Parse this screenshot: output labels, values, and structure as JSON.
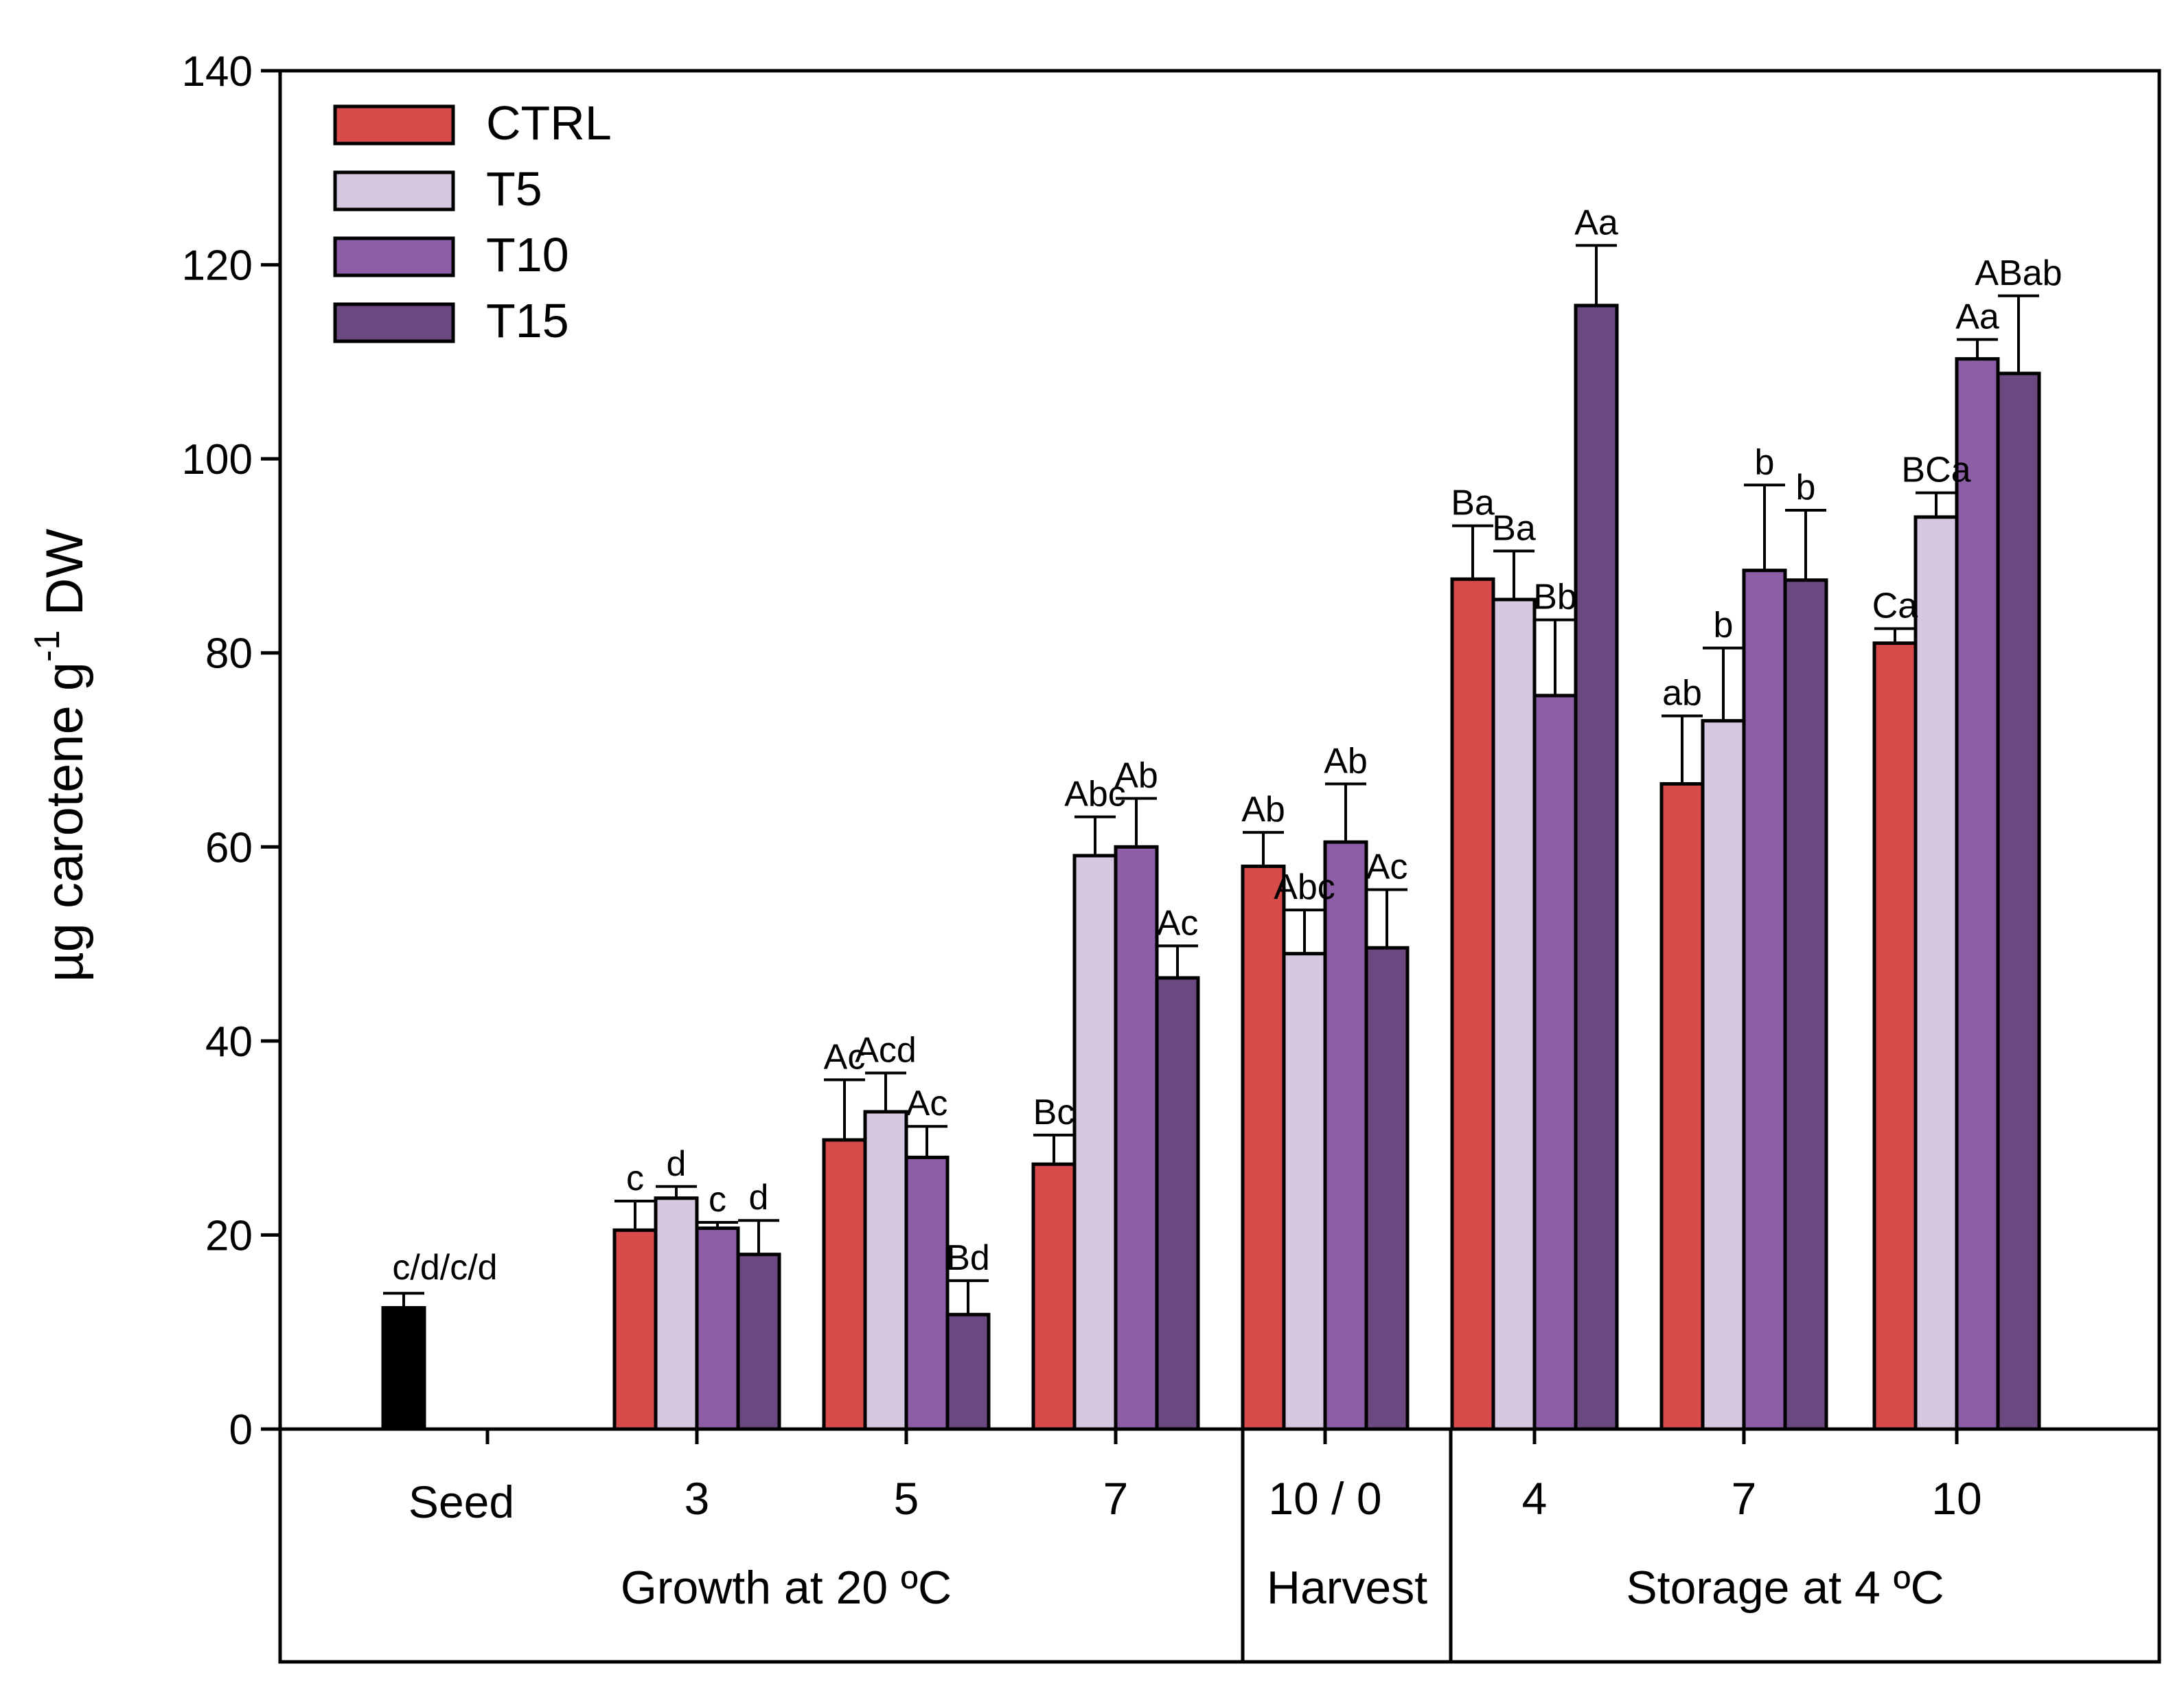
{
  "chart_data": {
    "type": "bar",
    "title": "",
    "ylabel": "µg carotene g",
    "ylabel_sup": "-1",
    "ylabel_suffix": " DW",
    "ylim": [
      0,
      140
    ],
    "yticks": [
      0,
      20,
      40,
      60,
      80,
      100,
      120,
      140
    ],
    "legend_position": "top-left",
    "series": [
      {
        "name": "CTRL",
        "color": "#d84b4b"
      },
      {
        "name": "T5",
        "color": "#d6c8e0"
      },
      {
        "name": "T10",
        "color": "#8b5ea6"
      },
      {
        "name": "T15",
        "color": "#6a4880"
      }
    ],
    "seed": {
      "label": "Seed",
      "value": 12.5,
      "error": 1.5,
      "sig": "c/d/c/d",
      "color": "#000000"
    },
    "categories": [
      {
        "label": "3",
        "values": [
          20.5,
          23.8,
          20.7,
          18.0
        ],
        "errors": [
          3.0,
          1.2,
          0.6,
          3.5
        ],
        "sig": [
          "c",
          "d",
          "c",
          "d"
        ]
      },
      {
        "label": "5",
        "values": [
          29.8,
          32.7,
          28.0,
          11.8
        ],
        "errors": [
          6.2,
          4.0,
          3.2,
          3.5
        ],
        "sig": [
          "Ac",
          "Acd",
          "Ac",
          "Bd"
        ]
      },
      {
        "label": "7",
        "values": [
          27.3,
          59.1,
          60.0,
          46.5
        ],
        "errors": [
          3.0,
          4.0,
          5.0,
          3.3
        ],
        "sig": [
          "Bc",
          "Abc",
          "Ab",
          "Ac"
        ]
      },
      {
        "label": "10 / 0",
        "values": [
          58.0,
          49.0,
          60.5,
          49.6
        ],
        "errors": [
          3.5,
          4.5,
          6.0,
          6.0
        ],
        "sig": [
          "Ab",
          "Abc",
          "Ab",
          "Ac"
        ]
      },
      {
        "label": "4",
        "values": [
          87.6,
          85.5,
          75.6,
          115.8
        ],
        "errors": [
          5.5,
          5.0,
          7.8,
          6.2
        ],
        "sig": [
          "Ba",
          "Ba",
          "Bb",
          "Aa"
        ]
      },
      {
        "label": "7",
        "values": [
          66.5,
          73.0,
          88.5,
          87.5
        ],
        "errors": [
          7.0,
          7.5,
          8.8,
          7.2
        ],
        "sig": [
          "ab",
          "b",
          "b",
          "b"
        ]
      },
      {
        "label": "10",
        "values": [
          81.0,
          94.0,
          110.3,
          108.8
        ],
        "errors": [
          1.5,
          2.5,
          2.0,
          8.0
        ],
        "sig": [
          "Ca",
          "BCa",
          "Aa",
          "ABab"
        ]
      }
    ],
    "groups": [
      {
        "label": "Growth at 20 ºC"
      },
      {
        "label": "Harvest"
      },
      {
        "label": "Storage at 4 ºC"
      }
    ]
  }
}
